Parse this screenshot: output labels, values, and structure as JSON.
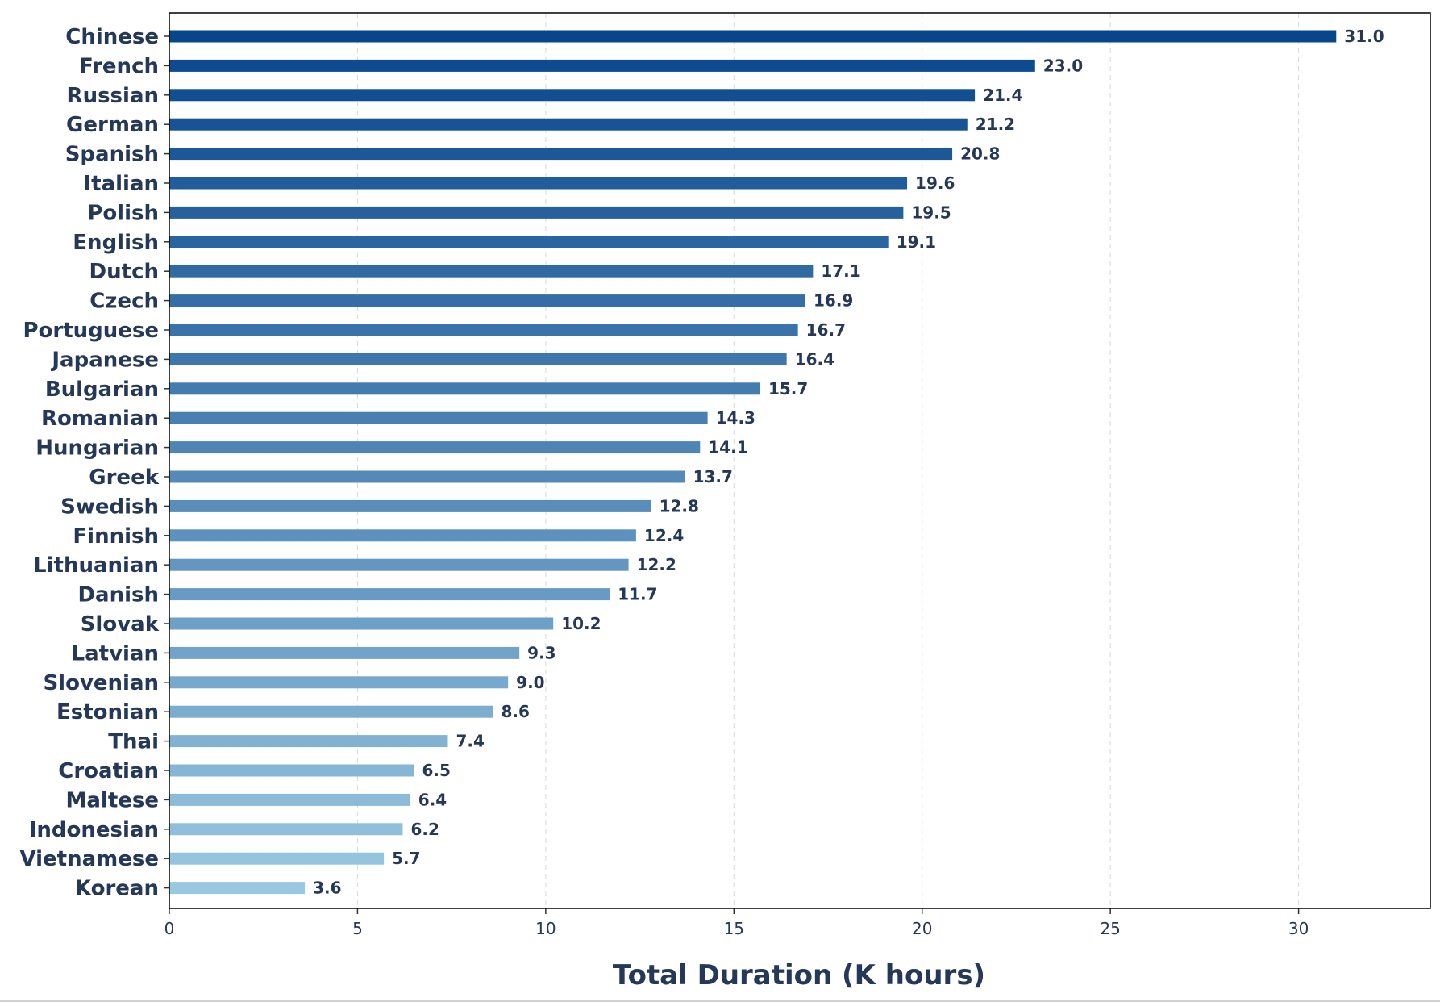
{
  "chart_data": {
    "type": "bar",
    "orientation": "horizontal",
    "categories": [
      "Chinese",
      "French",
      "Russian",
      "German",
      "Spanish",
      "Italian",
      "Polish",
      "English",
      "Dutch",
      "Czech",
      "Portuguese",
      "Japanese",
      "Bulgarian",
      "Romanian",
      "Hungarian",
      "Greek",
      "Swedish",
      "Finnish",
      "Lithuanian",
      "Danish",
      "Slovak",
      "Latvian",
      "Slovenian",
      "Estonian",
      "Thai",
      "Croatian",
      "Maltese",
      "Indonesian",
      "Vietnamese",
      "Korean"
    ],
    "values": [
      31.0,
      23.0,
      21.4,
      21.2,
      20.8,
      19.6,
      19.5,
      19.1,
      17.1,
      16.9,
      16.7,
      16.4,
      15.7,
      14.3,
      14.1,
      13.7,
      12.8,
      12.4,
      12.2,
      11.7,
      10.2,
      9.3,
      9.0,
      8.6,
      7.4,
      6.5,
      6.4,
      6.2,
      5.7,
      3.6
    ],
    "value_labels": [
      "31.0",
      "23.0",
      "21.4",
      "21.2",
      "20.8",
      "19.6",
      "19.5",
      "19.1",
      "17.1",
      "16.9",
      "16.7",
      "16.4",
      "15.7",
      "14.3",
      "14.1",
      "13.7",
      "12.8",
      "12.4",
      "12.2",
      "11.7",
      "10.2",
      "9.3",
      "9.0",
      "8.6",
      "7.4",
      "6.5",
      "6.4",
      "6.2",
      "5.7",
      "3.6"
    ],
    "xlabel": "Total Duration (K hours)",
    "ylabel": "",
    "title": "",
    "xlim": [
      0,
      33.5
    ],
    "xticks": [
      0,
      5,
      10,
      15,
      20,
      25,
      30
    ],
    "xtick_labels": [
      "0",
      "5",
      "10",
      "15",
      "20",
      "25",
      "30"
    ],
    "grid": "vertical dashed",
    "legend": "none",
    "colors": {
      "darkest": "#08468c",
      "lightest": "#9ac8e1",
      "text": "#253858"
    }
  }
}
